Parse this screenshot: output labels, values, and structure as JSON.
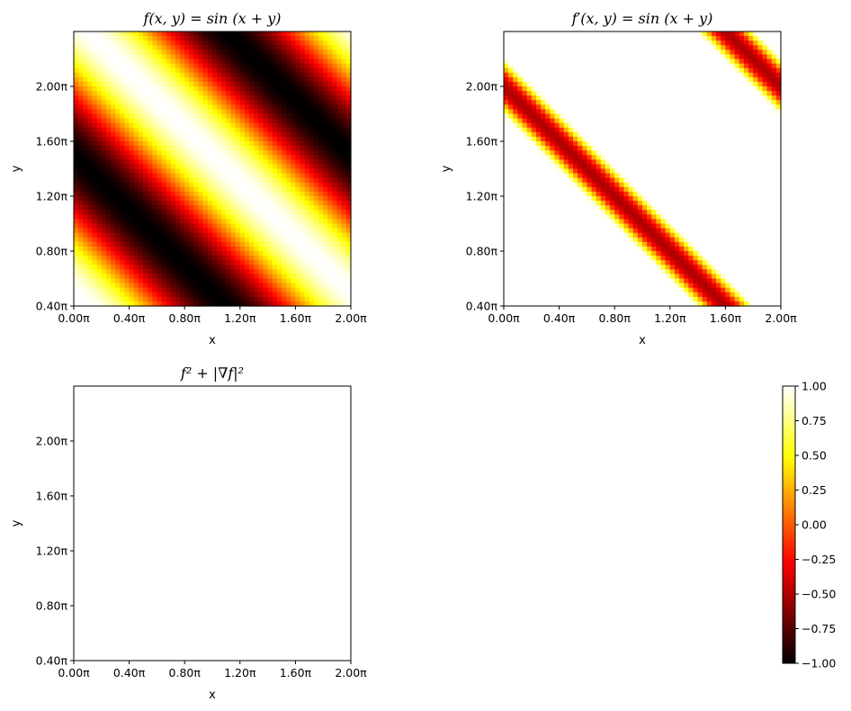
{
  "chart_data": [
    {
      "type": "heatmap",
      "title": "f(x, y) = sin (x + y)",
      "xlabel": "x",
      "ylabel": "y",
      "xlim": [
        0,
        2.0
      ],
      "ylim": [
        0.4,
        2.4
      ],
      "axis_unit": "π",
      "xticks": [
        "0.00π",
        "0.40π",
        "0.80π",
        "1.20π",
        "1.60π",
        "2.00π"
      ],
      "yticks": [
        "0.40π",
        "0.80π",
        "1.20π",
        "1.60π",
        "2.00π"
      ],
      "function": "sin(x + y)",
      "colormap": "hot",
      "vmin": -1,
      "vmax": 1
    },
    {
      "type": "heatmap",
      "title": "f′(x, y) = sin (x + y)",
      "xlabel": "x",
      "ylabel": "y",
      "xlim": [
        0,
        2.0
      ],
      "ylim": [
        0.4,
        2.4
      ],
      "axis_unit": "π",
      "xticks": [
        "0.00π",
        "0.40π",
        "0.80π",
        "1.20π",
        "1.60π",
        "2.00π"
      ],
      "yticks": [
        "0.40π",
        "0.80π",
        "1.20π",
        "1.60π",
        "2.00π"
      ],
      "function": "derivative field (bands where |cos(x + y)| is large)",
      "colormap": "hot",
      "vmin": -1,
      "vmax": 1
    },
    {
      "type": "heatmap",
      "title": "f² + |∇f|²",
      "xlabel": "x",
      "ylabel": "y",
      "xlim": [
        0,
        2.0
      ],
      "ylim": [
        0.4,
        2.4
      ],
      "axis_unit": "π",
      "xticks": [
        "0.00π",
        "0.40π",
        "0.80π",
        "1.20π",
        "1.60π",
        "2.00π"
      ],
      "yticks": [
        "0.40π",
        "0.80π",
        "1.20π",
        "1.60π",
        "2.00π"
      ],
      "function": "constant (rendered white)",
      "colormap": "hot"
    }
  ],
  "colorbar": {
    "colormap": "hot",
    "range": [
      -1.0,
      1.0
    ],
    "ticks": [
      "1.00",
      "0.75",
      "0.50",
      "0.25",
      "0.00",
      "−0.25",
      "−0.50",
      "−0.75",
      "−1.00"
    ]
  }
}
